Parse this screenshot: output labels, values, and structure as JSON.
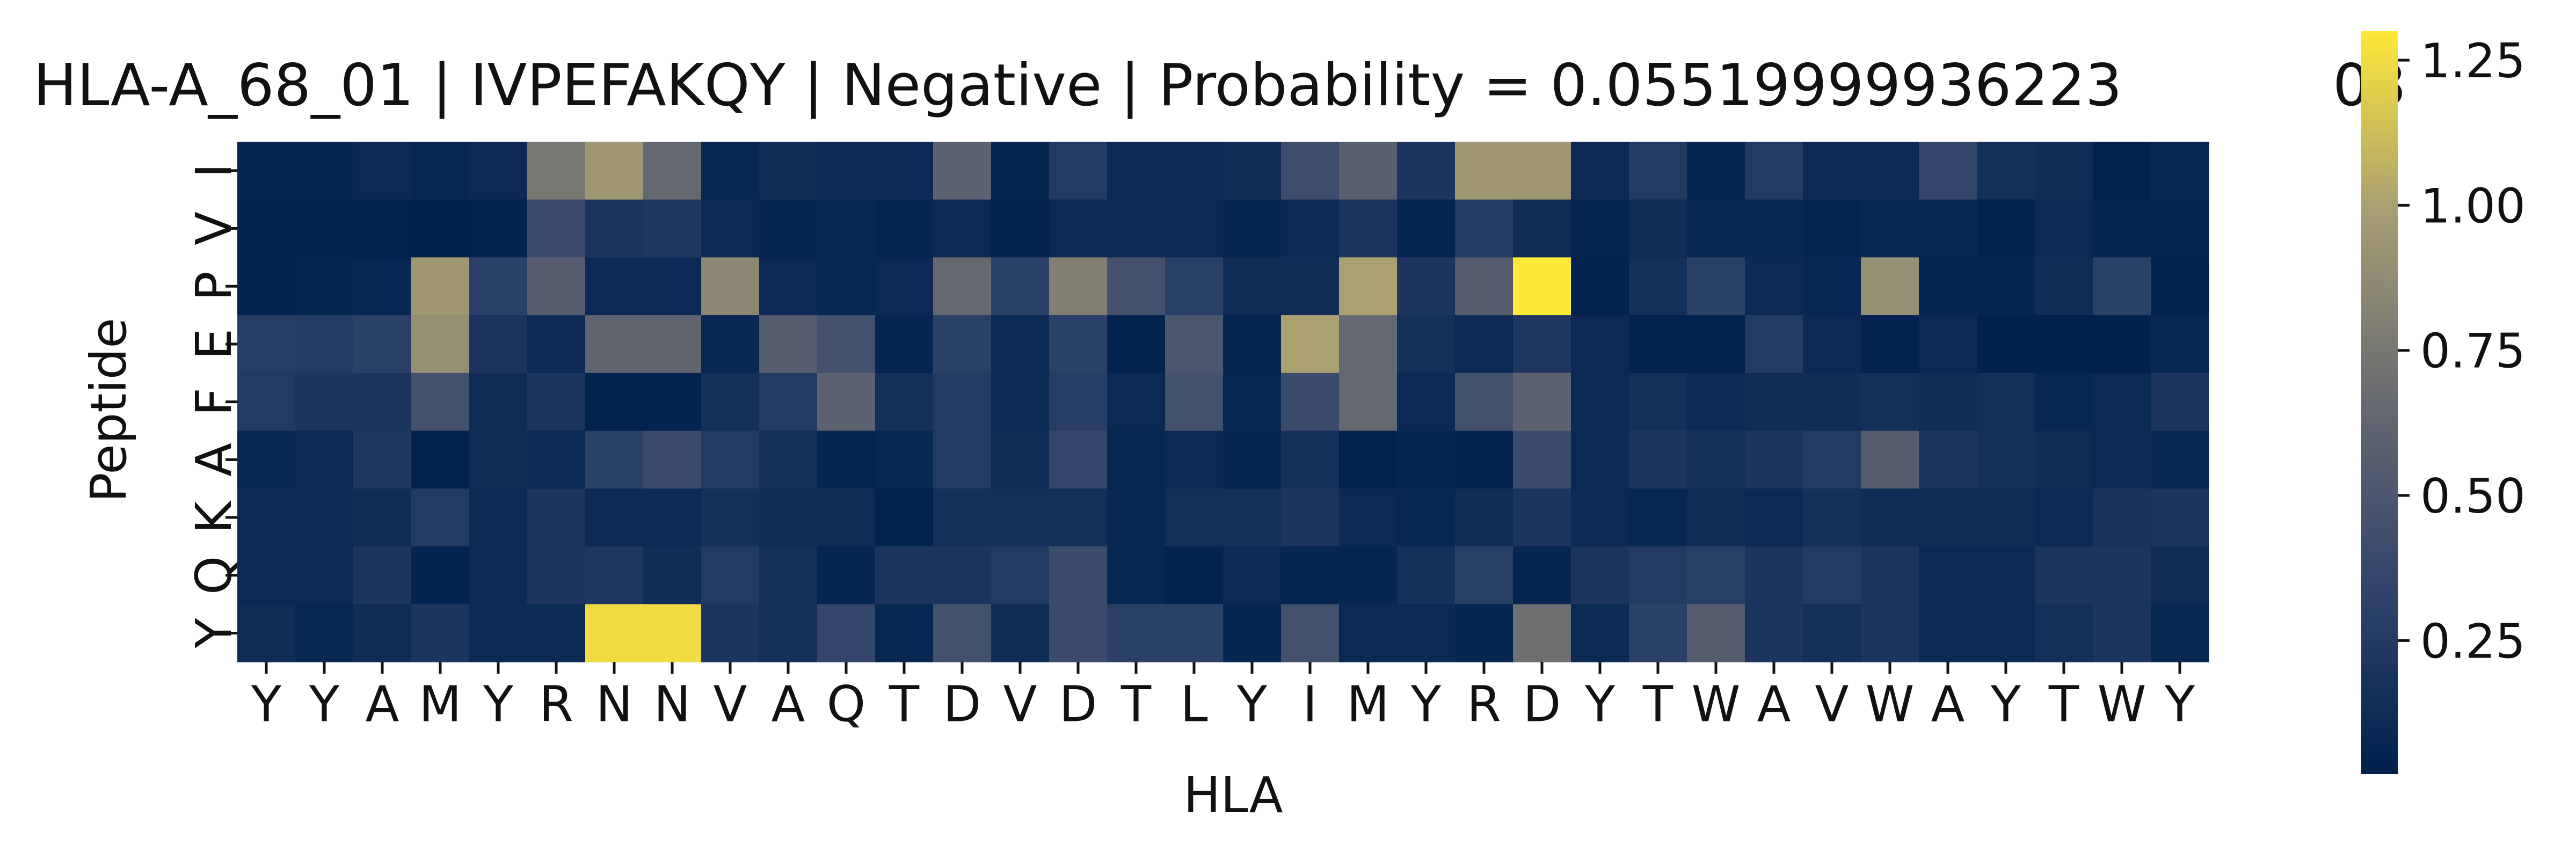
{
  "chart_data": {
    "type": "heatmap",
    "title": "HLA-A_68_01 | IVPEFAKQY | Negative | Probability = 0.05519999936223",
    "title_overlap_text": "03",
    "xlabel": "HLA",
    "ylabel": "Peptide",
    "x_categories": [
      "Y",
      "Y",
      "A",
      "M",
      "Y",
      "R",
      "N",
      "N",
      "V",
      "A",
      "Q",
      "T",
      "D",
      "V",
      "D",
      "T",
      "L",
      "Y",
      "I",
      "M",
      "Y",
      "R",
      "D",
      "Y",
      "T",
      "W",
      "A",
      "V",
      "W",
      "A",
      "Y",
      "T",
      "W",
      "Y"
    ],
    "y_categories": [
      "I",
      "V",
      "P",
      "E",
      "F",
      "A",
      "K",
      "Q",
      "Y"
    ],
    "colormap": "cividis",
    "colorbar": {
      "min": 0.02,
      "max": 1.3,
      "ticks": [
        "0.25",
        "0.50",
        "0.75",
        "1.00",
        "1.25"
      ],
      "tick_values": [
        0.25,
        0.5,
        0.75,
        1.0,
        1.25
      ]
    },
    "values": [
      [
        0.06,
        0.06,
        0.1,
        0.08,
        0.1,
        0.75,
        0.95,
        0.65,
        0.08,
        0.12,
        0.1,
        0.1,
        0.6,
        0.06,
        0.25,
        0.1,
        0.1,
        0.12,
        0.42,
        0.58,
        0.2,
        0.95,
        0.95,
        0.1,
        0.25,
        0.06,
        0.25,
        0.1,
        0.1,
        0.35,
        0.15,
        0.12,
        0.04,
        0.08
      ],
      [
        0.04,
        0.04,
        0.04,
        0.03,
        0.04,
        0.4,
        0.2,
        0.22,
        0.1,
        0.06,
        0.08,
        0.06,
        0.1,
        0.05,
        0.1,
        0.1,
        0.1,
        0.06,
        0.1,
        0.2,
        0.06,
        0.25,
        0.12,
        0.06,
        0.12,
        0.08,
        0.08,
        0.06,
        0.08,
        0.08,
        0.04,
        0.1,
        0.06,
        0.06
      ],
      [
        0.04,
        0.06,
        0.08,
        0.95,
        0.3,
        0.55,
        0.1,
        0.1,
        0.85,
        0.1,
        0.08,
        0.1,
        0.65,
        0.3,
        0.8,
        0.45,
        0.3,
        0.12,
        0.12,
        1.0,
        0.2,
        0.55,
        1.3,
        0.04,
        0.15,
        0.3,
        0.1,
        0.08,
        0.9,
        0.06,
        0.06,
        0.12,
        0.3,
        0.05
      ],
      [
        0.28,
        0.25,
        0.3,
        0.9,
        0.2,
        0.1,
        0.62,
        0.62,
        0.08,
        0.55,
        0.45,
        0.06,
        0.3,
        0.1,
        0.3,
        0.04,
        0.5,
        0.06,
        1.0,
        0.65,
        0.15,
        0.1,
        0.22,
        0.1,
        0.04,
        0.04,
        0.25,
        0.1,
        0.04,
        0.1,
        0.03,
        0.03,
        0.03,
        0.08
      ],
      [
        0.25,
        0.2,
        0.2,
        0.45,
        0.12,
        0.2,
        0.04,
        0.04,
        0.15,
        0.25,
        0.6,
        0.15,
        0.25,
        0.1,
        0.28,
        0.1,
        0.45,
        0.08,
        0.4,
        0.65,
        0.1,
        0.45,
        0.6,
        0.1,
        0.15,
        0.1,
        0.12,
        0.12,
        0.15,
        0.12,
        0.15,
        0.08,
        0.1,
        0.2
      ],
      [
        0.08,
        0.1,
        0.22,
        0.04,
        0.12,
        0.1,
        0.3,
        0.4,
        0.25,
        0.15,
        0.06,
        0.08,
        0.25,
        0.12,
        0.35,
        0.08,
        0.1,
        0.06,
        0.15,
        0.04,
        0.06,
        0.05,
        0.4,
        0.1,
        0.2,
        0.15,
        0.2,
        0.25,
        0.55,
        0.2,
        0.15,
        0.12,
        0.1,
        0.08
      ],
      [
        0.1,
        0.1,
        0.12,
        0.25,
        0.1,
        0.2,
        0.1,
        0.1,
        0.15,
        0.12,
        0.12,
        0.04,
        0.15,
        0.15,
        0.15,
        0.08,
        0.15,
        0.15,
        0.2,
        0.1,
        0.08,
        0.12,
        0.2,
        0.1,
        0.08,
        0.12,
        0.1,
        0.15,
        0.12,
        0.12,
        0.12,
        0.1,
        0.18,
        0.2
      ],
      [
        0.1,
        0.1,
        0.2,
        0.05,
        0.1,
        0.2,
        0.22,
        0.12,
        0.25,
        0.15,
        0.06,
        0.2,
        0.2,
        0.25,
        0.4,
        0.08,
        0.05,
        0.1,
        0.06,
        0.06,
        0.15,
        0.3,
        0.06,
        0.2,
        0.25,
        0.3,
        0.2,
        0.25,
        0.2,
        0.1,
        0.1,
        0.2,
        0.2,
        0.12
      ],
      [
        0.12,
        0.08,
        0.12,
        0.2,
        0.1,
        0.1,
        1.25,
        1.25,
        0.2,
        0.15,
        0.35,
        0.08,
        0.45,
        0.12,
        0.4,
        0.3,
        0.3,
        0.06,
        0.45,
        0.1,
        0.1,
        0.06,
        0.7,
        0.1,
        0.3,
        0.55,
        0.2,
        0.15,
        0.2,
        0.1,
        0.1,
        0.15,
        0.2,
        0.08
      ]
    ]
  }
}
